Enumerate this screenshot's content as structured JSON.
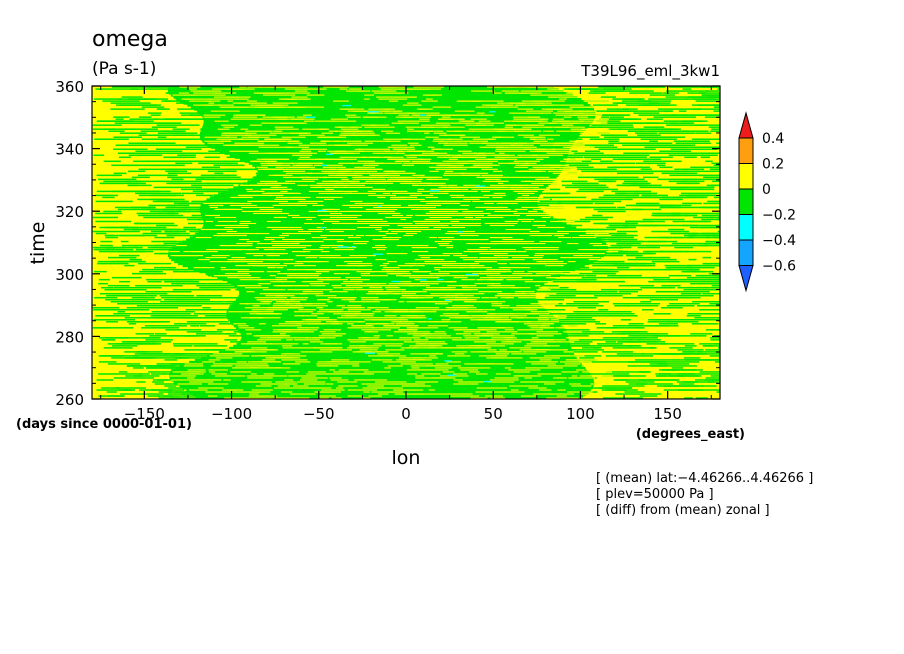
{
  "chart_data": {
    "type": "heatmap",
    "title": "omega",
    "units": "(Pa s-1)",
    "run_label": "T39L96_eml_3kw1",
    "xlabel": "lon",
    "xunits": "(degrees_east)",
    "ylabel": "time",
    "yunits": "(days since 0000-01-01)",
    "xlim": [
      -180,
      180
    ],
    "ylim": [
      260,
      360
    ],
    "x_ticks": [
      -150,
      -100,
      -50,
      0,
      50,
      100,
      150
    ],
    "x_tick_labels": [
      "−150",
      "−100",
      "−50",
      "0",
      "50",
      "100",
      "150"
    ],
    "y_ticks": [
      260,
      280,
      300,
      320,
      340,
      360
    ],
    "y_tick_labels": [
      "260",
      "280",
      "300",
      "320",
      "340",
      "360"
    ],
    "colorbar": {
      "levels": [
        {
          "range": [
            0.4,
            null
          ],
          "color": "#ee1c1c"
        },
        {
          "range": [
            0.2,
            0.4
          ],
          "color": "#ff9f0f"
        },
        {
          "range": [
            0,
            0.2
          ],
          "color": "#ffff00"
        },
        {
          "range": [
            -0.2,
            0
          ],
          "color": "#00e600"
        },
        {
          "range": [
            -0.4,
            -0.2
          ],
          "color": "#00ffff"
        },
        {
          "range": [
            -0.6,
            -0.4
          ],
          "color": "#14a5ff"
        },
        {
          "range": [
            null,
            -0.6
          ],
          "color": "#1e5fff"
        }
      ],
      "tick_labels": [
        "0.4",
        "0.2",
        "0",
        "−0.2",
        "−0.4",
        "−0.6"
      ],
      "tick_values": [
        0.4,
        0.2,
        0,
        -0.2,
        -0.4,
        -0.6
      ]
    },
    "annotations": [
      "[ (mean) lat:−4.46266..4.46266 ]",
      "[ plev=50000 Pa ]",
      "[ (diff) from (mean) zonal ]"
    ],
    "field_pattern": "Negative omega (green, -0.2..0) dominates the central longitudes (about -110 to 100 E); positive omega (yellow, 0..0.2) dominates near both edges; sparse cyan (-0.4..-0.2) specks near 0 E."
  }
}
